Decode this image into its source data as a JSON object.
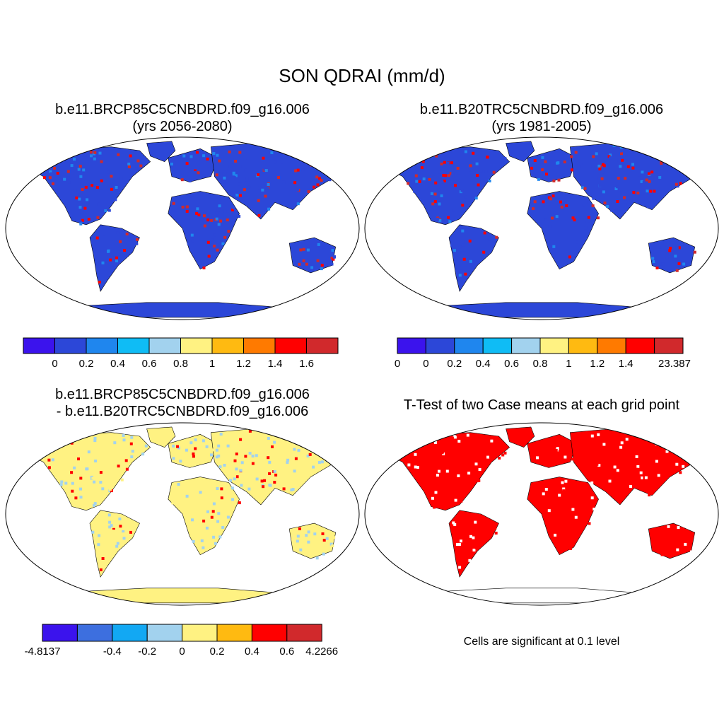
{
  "main_title": "SON QDRAI (mm/d)",
  "panels": [
    {
      "title": "b.e11.BRCP85C5CNBDRD.f09_g16.006",
      "subtitle": "(yrs 2056-2080)",
      "colorbar": {
        "colors": [
          "#3b13ed",
          "#2c47d8",
          "#1f86ee",
          "#0fbcf5",
          "#a2d2ee",
          "#fff282",
          "#ffba11",
          "#ff7a00",
          "#ff0000",
          "#d1292c"
        ],
        "labels": [
          "0",
          "0.2",
          "0.4",
          "0.6",
          "0.8",
          "1",
          "1.2",
          "1.4",
          "1.6"
        ]
      }
    },
    {
      "title": "b.e11.B20TRC5CNBDRD.f09_g16.006",
      "subtitle": "(yrs 1981-2005)",
      "colorbar": {
        "colors": [
          "#3b13ed",
          "#2c47d8",
          "#1f86ee",
          "#0fbcf5",
          "#a2d2ee",
          "#fff282",
          "#ffba11",
          "#ff7a00",
          "#ff0000",
          "#d1292c"
        ],
        "labels": [
          "0",
          "0",
          "0.2",
          "0.4",
          "0.6",
          "0.8",
          "1",
          "1.2",
          "1.4",
          "23.387"
        ]
      }
    },
    {
      "title": "b.e11.BRCP85C5CNBDRD.f09_g16.006",
      "subtitle": "- b.e11.B20TRC5CNBDRD.f09_g16.006",
      "colorbar": {
        "colors": [
          "#3b13ed",
          "#3d6fdf",
          "#12a8f3",
          "#a2d2ee",
          "#fff282",
          "#ffba11",
          "#ff0000",
          "#d1292c"
        ],
        "labels": [
          "-4.8137",
          "-0.4",
          "-0.2",
          "0",
          "0.2",
          "0.4",
          "0.6",
          "4.2266"
        ]
      }
    },
    {
      "title": "T-Test of two Case means at each grid point",
      "note": "Cells are significant at 0.1 level"
    }
  ],
  "map_colors": {
    "land_base_abs": "#2c47d8",
    "land_base_diff": "#fff282",
    "diff_secondary": "#a2d2ee",
    "significant": "#ff0000",
    "ocean": "#ffffff",
    "coastline": "#000000"
  }
}
